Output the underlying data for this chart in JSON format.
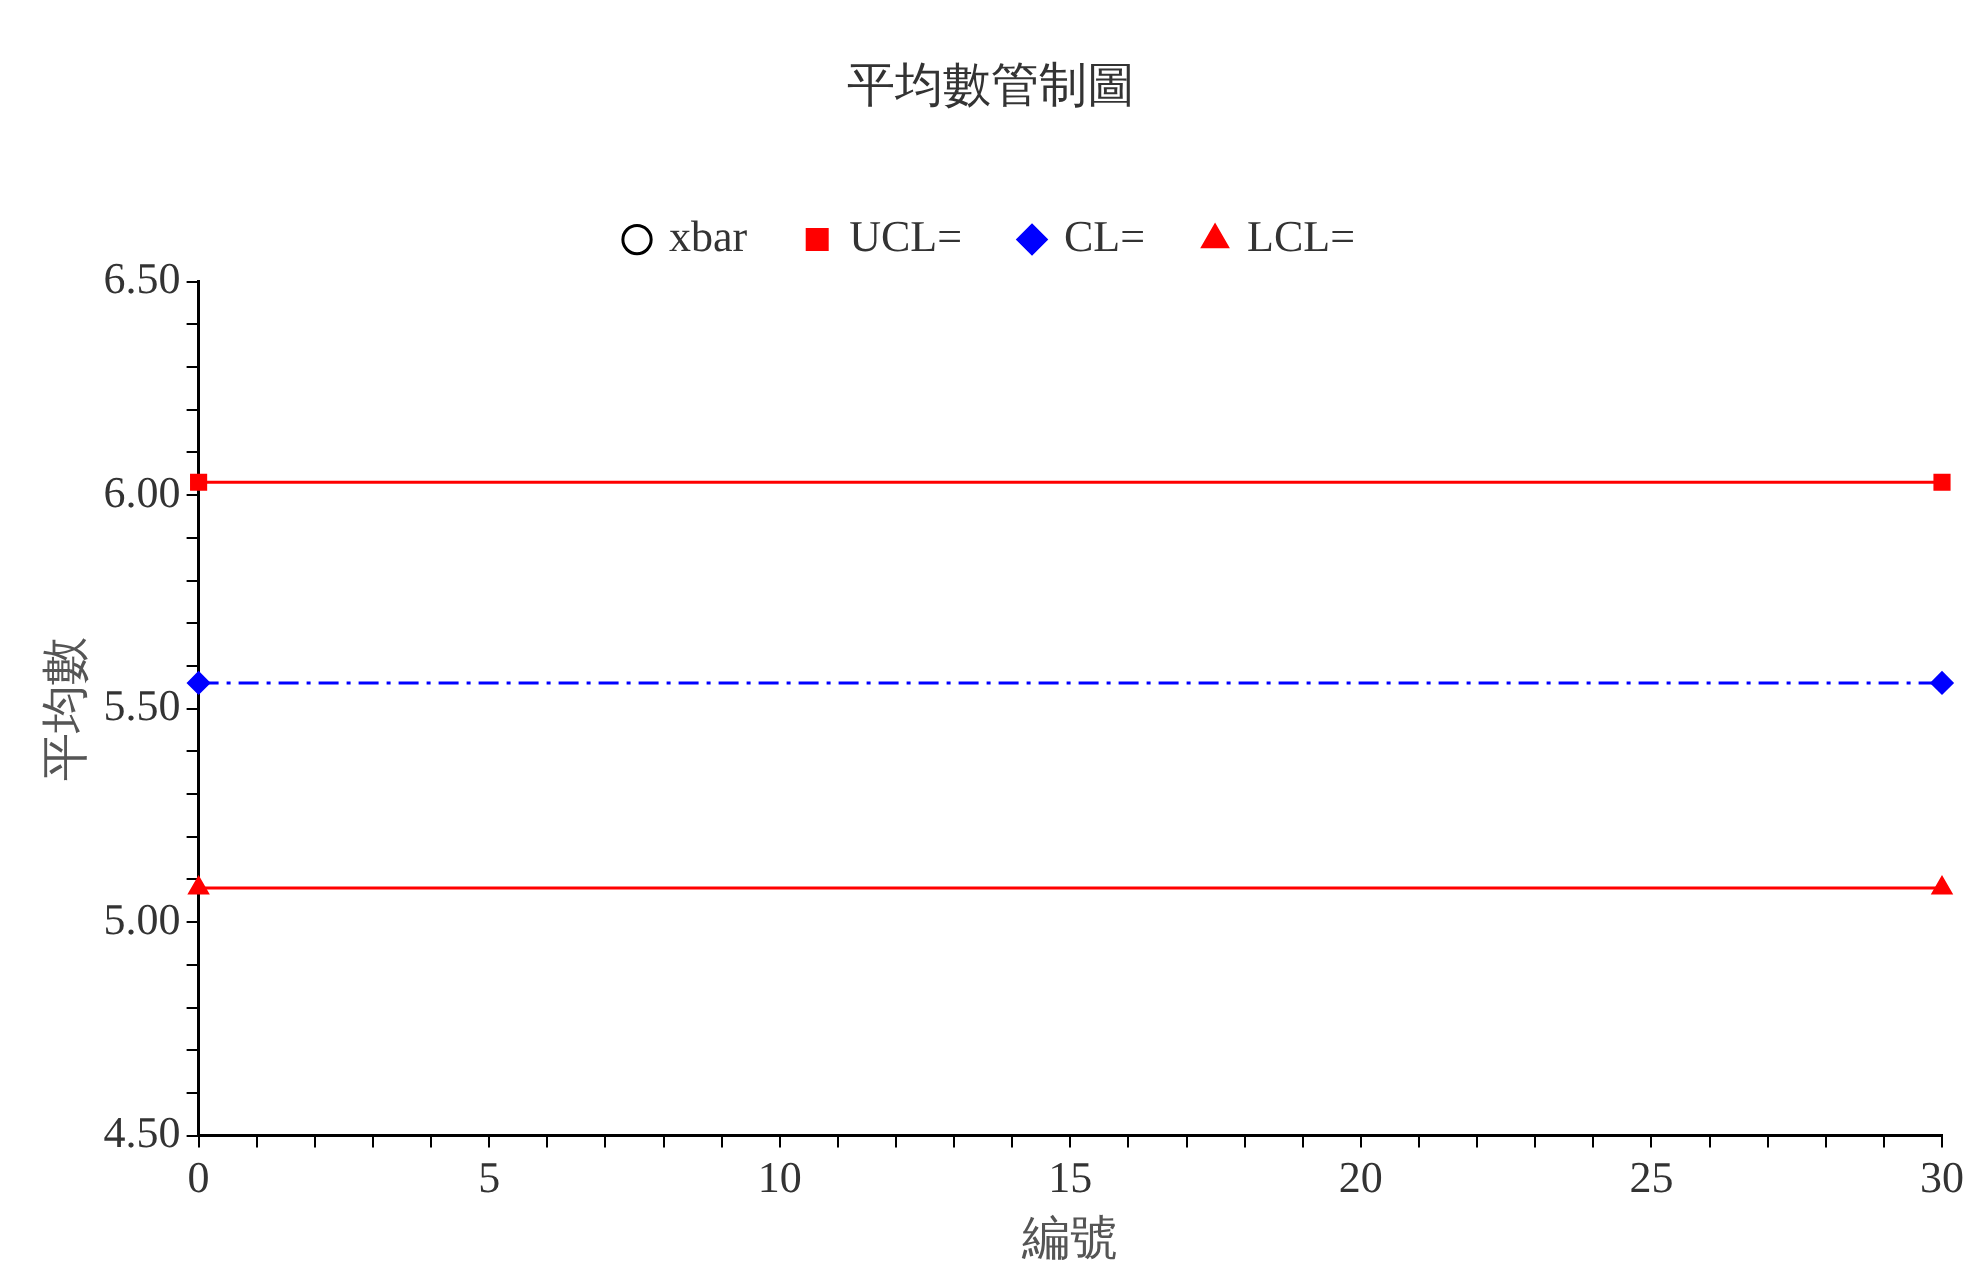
{
  "chart_data": {
    "type": "line",
    "title": "平均數管制圖",
    "xlabel": "編號",
    "ylabel": "平均數",
    "xlim": [
      0,
      30
    ],
    "xticks": [
      0,
      {
        "value": 1,
        "label": null
      },
      {
        "value": 2,
        "label": null
      },
      {
        "value": 3,
        "label": null
      },
      {
        "value": 4,
        "label": null
      },
      5,
      {
        "value": 6,
        "label": null
      },
      {
        "value": 7,
        "label": null
      },
      {
        "value": 8,
        "label": null
      },
      {
        "value": 9,
        "label": null
      },
      10,
      {
        "value": 11,
        "label": null
      },
      {
        "value": 12,
        "label": null
      },
      {
        "value": 13,
        "label": null
      },
      {
        "value": 14,
        "label": null
      },
      15,
      {
        "value": 16,
        "label": null
      },
      {
        "value": 17,
        "label": null
      },
      {
        "value": 18,
        "label": null
      },
      {
        "value": 19,
        "label": null
      },
      20,
      {
        "value": 21,
        "label": null
      },
      {
        "value": 22,
        "label": null
      },
      {
        "value": 23,
        "label": null
      },
      {
        "value": 24,
        "label": null
      },
      25,
      {
        "value": 26,
        "label": null
      },
      {
        "value": 27,
        "label": null
      },
      {
        "value": 28,
        "label": null
      },
      {
        "value": 29,
        "label": null
      },
      30
    ],
    "ylim": [
      4.5,
      6.5
    ],
    "yticks": [
      {
        "value": 4.5,
        "label": "4.50"
      },
      {
        "value": 4.6,
        "label": null
      },
      {
        "value": 4.7,
        "label": null
      },
      {
        "value": 4.8,
        "label": null
      },
      {
        "value": 4.9,
        "label": null
      },
      {
        "value": 5,
        "label": "5.00"
      },
      {
        "value": 5.1,
        "label": null
      },
      {
        "value": 5.2,
        "label": null
      },
      {
        "value": 5.3,
        "label": null
      },
      {
        "value": 5.4,
        "label": null
      },
      {
        "value": 5.5,
        "label": "5.50"
      },
      {
        "value": 5.6,
        "label": null
      },
      {
        "value": 5.7,
        "label": null
      },
      {
        "value": 5.8,
        "label": null
      },
      {
        "value": 5.9,
        "label": null
      },
      {
        "value": 6,
        "label": "6.00"
      },
      {
        "value": 6.1,
        "label": null
      },
      {
        "value": 6.2,
        "label": null
      },
      {
        "value": 6.3,
        "label": null
      },
      {
        "value": 6.4,
        "label": null
      },
      {
        "value": 6.5,
        "label": "6.50"
      }
    ],
    "legend": "top",
    "grid": false,
    "x": [
      0,
      30
    ],
    "series": [
      {
        "name": "xbar",
        "color": "#000000",
        "marker": "circle",
        "line_style": "solid",
        "values": [
          null,
          null
        ]
      },
      {
        "name": "UCL=",
        "color": "#ff0000",
        "marker": "square",
        "line_style": "solid",
        "values": [
          6.03,
          6.03
        ]
      },
      {
        "name": "CL=",
        "color": "#0000ff",
        "marker": "diamond",
        "line_style": "dashed",
        "values": [
          5.56,
          5.56
        ]
      },
      {
        "name": "LCL=",
        "color": "#ff0000",
        "marker": "triangle",
        "line_style": "solid",
        "values": [
          5.08,
          5.08
        ]
      }
    ]
  }
}
